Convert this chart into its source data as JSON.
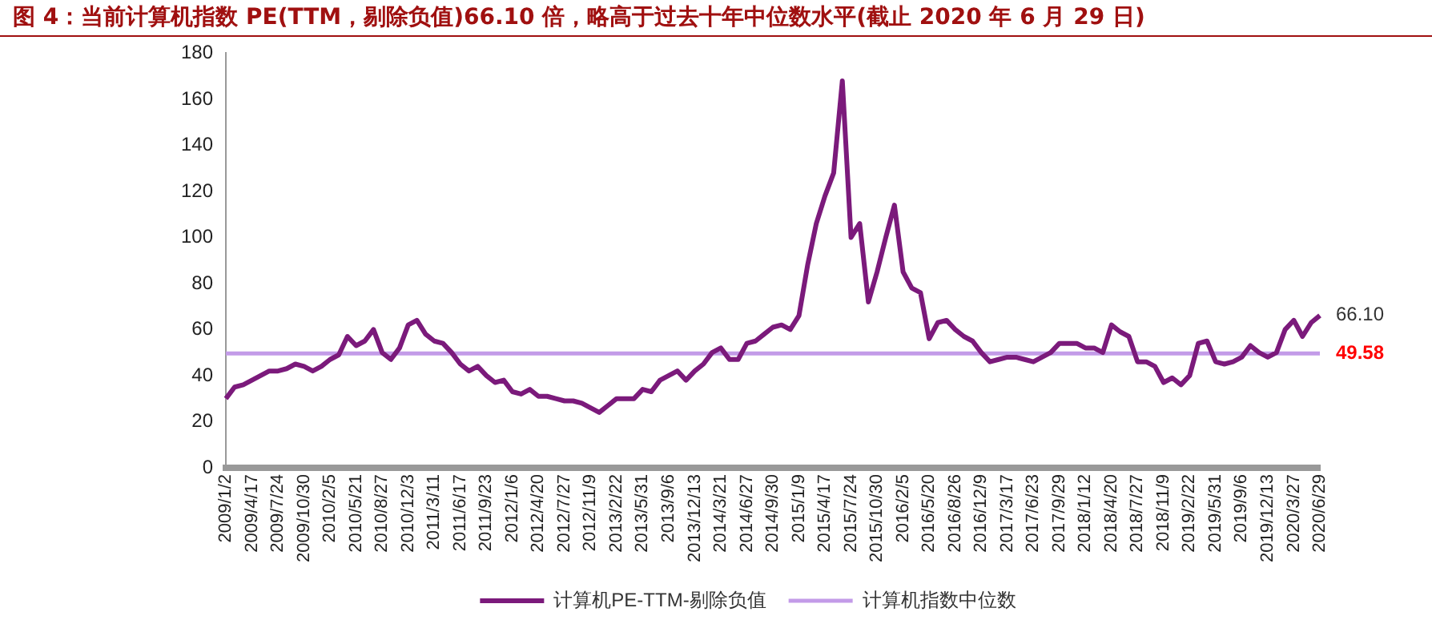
{
  "chart_data": {
    "type": "line",
    "title": "图 4：当前计算机指数 PE(TTM，剔除负值)66.10 倍，略高于过去十年中位数水平(截止 2020 年 6 月 29 日)",
    "categories": [
      "2009/1/2",
      null,
      null,
      "2009/4/17",
      null,
      null,
      "2009/7/24",
      null,
      null,
      "2009/10/30",
      null,
      null,
      "2010/2/5",
      null,
      null,
      "2010/5/21",
      null,
      null,
      "2010/8/27",
      null,
      null,
      "2010/12/3",
      null,
      null,
      "2011/3/11",
      null,
      null,
      "2011/6/17",
      null,
      null,
      "2011/9/23",
      null,
      null,
      "2012/1/6",
      null,
      null,
      "2012/4/20",
      null,
      null,
      "2012/7/27",
      null,
      null,
      "2012/11/9",
      null,
      null,
      "2013/2/22",
      null,
      null,
      "2013/5/31",
      null,
      null,
      "2013/9/6",
      null,
      null,
      "2013/12/13",
      null,
      null,
      "2014/3/21",
      null,
      null,
      "2014/6/27",
      null,
      null,
      "2014/9/30",
      null,
      null,
      "2015/1/9",
      null,
      null,
      "2015/4/17",
      null,
      null,
      "2015/7/24",
      null,
      null,
      "2015/10/30",
      null,
      null,
      "2016/2/5",
      null,
      null,
      "2016/5/20",
      null,
      null,
      "2016/8/26",
      null,
      null,
      "2016/12/9",
      null,
      null,
      "2017/3/17",
      null,
      null,
      "2017/6/23",
      null,
      null,
      "2017/9/29",
      null,
      null,
      "2018/1/12",
      null,
      null,
      "2018/4/20",
      null,
      null,
      "2018/7/27",
      null,
      null,
      "2018/11/9",
      null,
      null,
      "2019/2/22",
      null,
      null,
      "2019/5/31",
      null,
      null,
      "2019/9/6",
      null,
      null,
      "2019/12/13",
      null,
      null,
      "2020/3/27",
      null,
      null,
      "2020/6/29"
    ],
    "series": [
      {
        "name": "计算机PE-TTM-剔除负值",
        "color": "#7b1a7b",
        "values": [
          30,
          35,
          36,
          38,
          40,
          42,
          42,
          43,
          45,
          44,
          42,
          44,
          47,
          49,
          57,
          53,
          55,
          60,
          50,
          47,
          52,
          62,
          64,
          58,
          55,
          54,
          50,
          45,
          42,
          44,
          40,
          37,
          38,
          33,
          32,
          34,
          31,
          31,
          30,
          29,
          29,
          28,
          26,
          24,
          27,
          30,
          30,
          30,
          34,
          33,
          38,
          40,
          42,
          38,
          42,
          45,
          50,
          52,
          47,
          47,
          54,
          55,
          58,
          61,
          62,
          60,
          66,
          88,
          106,
          118,
          128,
          168,
          100,
          106,
          72,
          85,
          100,
          114,
          85,
          78,
          76,
          56,
          63,
          64,
          60,
          57,
          55,
          50,
          46,
          47,
          48,
          48,
          47,
          46,
          48,
          50,
          54,
          54,
          54,
          52,
          52,
          50,
          62,
          59,
          57,
          46,
          46,
          44,
          37,
          39,
          36,
          40,
          54,
          55,
          46,
          45,
          46,
          48,
          53,
          50,
          48,
          50,
          60,
          64,
          57,
          63,
          66.1
        ]
      },
      {
        "name": "计算机指数中位数",
        "color": "#c39be8",
        "values": [
          49.58,
          49.58,
          49.58,
          49.58,
          49.58,
          49.58,
          49.58,
          49.58,
          49.58,
          49.58,
          49.58,
          49.58,
          49.58,
          49.58,
          49.58,
          49.58,
          49.58,
          49.58,
          49.58,
          49.58,
          49.58,
          49.58,
          49.58,
          49.58,
          49.58,
          49.58,
          49.58,
          49.58,
          49.58,
          49.58,
          49.58,
          49.58,
          49.58,
          49.58,
          49.58,
          49.58,
          49.58,
          49.58,
          49.58,
          49.58,
          49.58,
          49.58,
          49.58,
          49.58,
          49.58,
          49.58,
          49.58,
          49.58,
          49.58,
          49.58,
          49.58,
          49.58,
          49.58,
          49.58,
          49.58,
          49.58,
          49.58,
          49.58,
          49.58,
          49.58,
          49.58,
          49.58,
          49.58,
          49.58,
          49.58,
          49.58,
          49.58,
          49.58,
          49.58,
          49.58,
          49.58,
          49.58,
          49.58,
          49.58,
          49.58,
          49.58,
          49.58,
          49.58,
          49.58,
          49.58,
          49.58,
          49.58,
          49.58,
          49.58,
          49.58,
          49.58,
          49.58,
          49.58,
          49.58,
          49.58,
          49.58,
          49.58,
          49.58,
          49.58,
          49.58,
          49.58,
          49.58,
          49.58,
          49.58,
          49.58,
          49.58,
          49.58,
          49.58,
          49.58,
          49.58,
          49.58,
          49.58,
          49.58,
          49.58,
          49.58,
          49.58,
          49.58,
          49.58,
          49.58,
          49.58,
          49.58,
          49.58,
          49.58,
          49.58,
          49.58,
          49.58,
          49.58,
          49.58,
          49.58,
          49.58,
          49.58,
          49.58
        ]
      }
    ],
    "ylim": [
      0,
      180
    ],
    "yticks": [
      0,
      20,
      40,
      60,
      80,
      100,
      120,
      140,
      160,
      180
    ],
    "annotations": [
      {
        "text": "66.10",
        "x": "2020/6/29",
        "y": 66.1
      },
      {
        "text": "49.58",
        "x": "2020/6/29",
        "y": 49.58
      }
    ],
    "grid": false,
    "legend": "bottom",
    "marker": "none",
    "line_style": "solid"
  }
}
